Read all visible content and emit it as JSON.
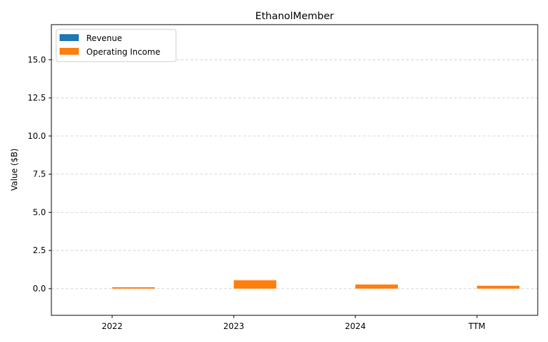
{
  "chart_data": {
    "type": "bar",
    "title": "EthanolMember",
    "xlabel": "",
    "ylabel": "Value ($B)",
    "categories": [
      "2022",
      "2023",
      "2024",
      "TTM"
    ],
    "ylim": [
      -1.75,
      17.3
    ],
    "yticks": [
      "0.0",
      "2.5",
      "5.0",
      "7.5",
      "10.0",
      "12.5",
      "15.0"
    ],
    "grid": "y-dashed",
    "legend_position": "top-left",
    "series": [
      {
        "name": "Revenue",
        "color": "#1f77b4",
        "values": [
          0,
          0,
          0,
          0
        ]
      },
      {
        "name": "Operating Income",
        "color": "#ff7f0e",
        "values": [
          0.09,
          0.55,
          0.27,
          0.19
        ]
      }
    ]
  }
}
